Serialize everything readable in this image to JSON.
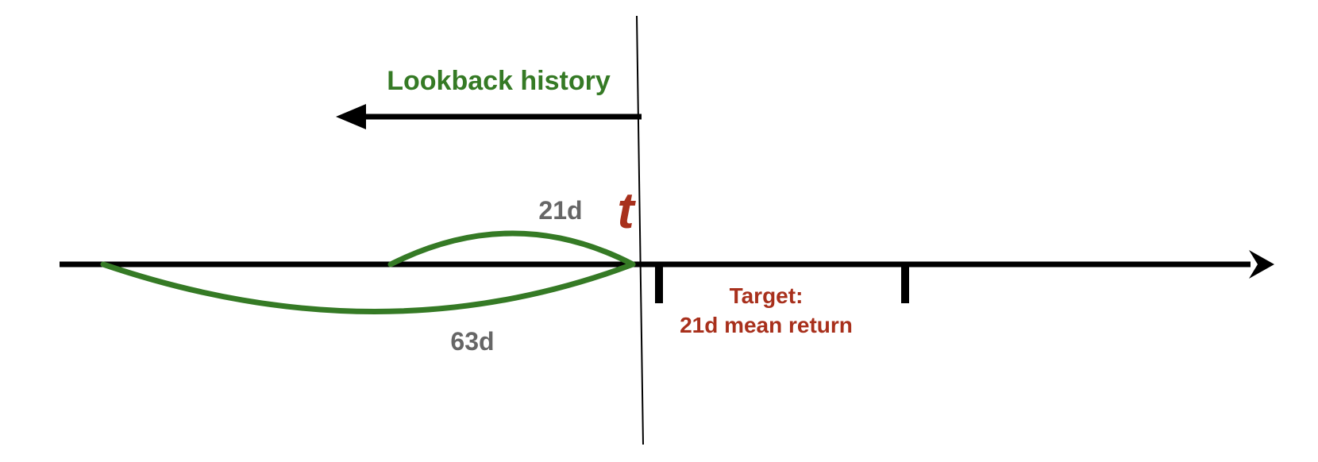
{
  "labels": {
    "lookback": "Lookback history",
    "short_window": "21d",
    "time_marker": "t",
    "long_window": "63d",
    "target_line1": "Target:",
    "target_line2": "21d mean return"
  },
  "colors": {
    "green": "#357a25",
    "red": "#a8301c",
    "gray": "#666666",
    "black": "#000000"
  }
}
